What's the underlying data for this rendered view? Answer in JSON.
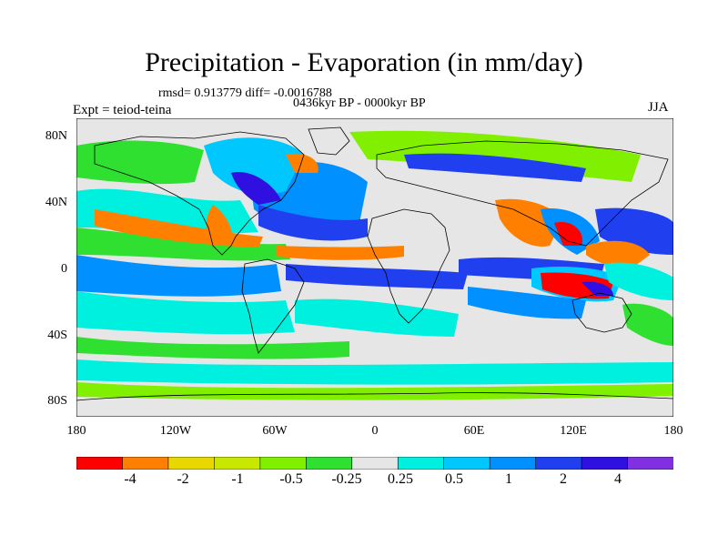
{
  "title": "Precipitation - Evaporation (in mm/day)",
  "stats": "rmsd= 0.913779 diff= -0.0016788",
  "period": "0436kyr BP - 0000kyr BP",
  "experiment": "Expt = teiod-teina",
  "season": "JJA",
  "y_ticks": [
    "80N",
    "40N",
    "0",
    "40S",
    "80S"
  ],
  "x_ticks": [
    "180",
    "120W",
    "60W",
    "0",
    "60E",
    "120E",
    "180"
  ],
  "colorbar": {
    "colors": [
      "#ff0000",
      "#ff8000",
      "#e8d800",
      "#c8e800",
      "#80f000",
      "#30e030",
      "#e6e6e6",
      "#00f0e0",
      "#00c8ff",
      "#0090ff",
      "#2040f0",
      "#3010e0",
      "#8030e0"
    ],
    "labels": [
      "-4",
      "-2",
      "-1",
      "-0.5",
      "-0.25",
      "0.25",
      "0.5",
      "1",
      "2",
      "4"
    ]
  },
  "legend_colors": {
    "land_fill": "#e6e6e6",
    "coast": "#000000",
    "wet_strong": "#2040f0",
    "wet_moderate": "#00c8ff",
    "dry_moderate": "#30e030",
    "dry_strong": "#ff0000"
  }
}
